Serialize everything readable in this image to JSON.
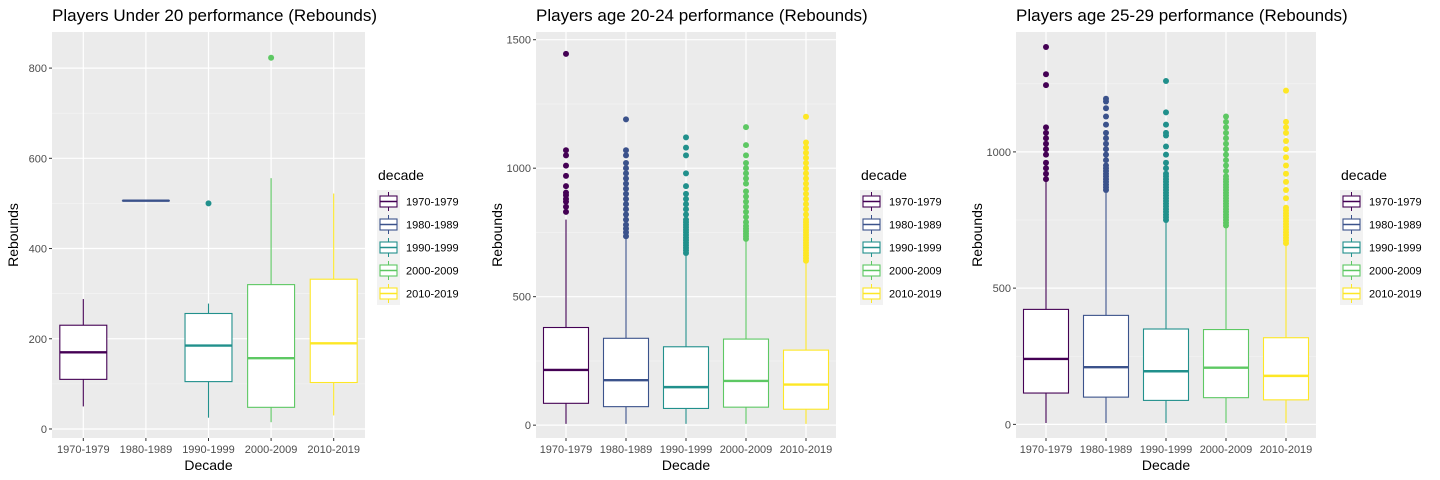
{
  "decade_colors": {
    "1970-1979": "#440154",
    "1980-1989": "#3b528b",
    "1990-1999": "#21908c",
    "2000-2009": "#5dc863",
    "2010-2019": "#fde725"
  },
  "chart_data": [
    {
      "type": "boxplot",
      "title": "Players Under 20 performance (Rebounds)",
      "xlabel": "Decade",
      "ylabel": "Rebounds",
      "ylim": [
        -20,
        880
      ],
      "yticks": [
        0,
        200,
        400,
        600,
        800
      ],
      "yticks_labels": [
        "0",
        "200",
        "400",
        "600",
        "800"
      ],
      "categories": [
        "1970-1979",
        "1980-1989",
        "1990-1999",
        "2000-2009",
        "2010-2019"
      ],
      "legend": {
        "title": "decade",
        "position": "right",
        "entries": [
          "1970-1979",
          "1980-1989",
          "1990-1999",
          "2000-2009",
          "2010-2019"
        ]
      },
      "boxes": [
        {
          "category": "1970-1979",
          "min": 50,
          "q1": 110,
          "median": 170,
          "q3": 230,
          "max": 288,
          "outliers": []
        },
        {
          "category": "1980-1989",
          "min": 506,
          "q1": 506,
          "median": 506,
          "q3": 506,
          "max": 506,
          "outliers": []
        },
        {
          "category": "1990-1999",
          "min": 25,
          "q1": 105,
          "median": 185,
          "q3": 256,
          "max": 278,
          "outliers": [
            500
          ]
        },
        {
          "category": "2000-2009",
          "min": 15,
          "q1": 48,
          "median": 157,
          "q3": 320,
          "max": 556,
          "outliers": [
            823
          ]
        },
        {
          "category": "2010-2019",
          "min": 30,
          "q1": 103,
          "median": 190,
          "q3": 332,
          "max": 522,
          "outliers": []
        }
      ]
    },
    {
      "type": "boxplot",
      "title": "Players age 20-24 performance (Rebounds)",
      "xlabel": "Decade",
      "ylabel": "Rebounds",
      "ylim": [
        -50,
        1530
      ],
      "yticks": [
        0,
        500,
        1000,
        1500
      ],
      "yticks_labels": [
        "0",
        "500",
        "1000",
        "1500"
      ],
      "categories": [
        "1970-1979",
        "1980-1989",
        "1990-1999",
        "2000-2009",
        "2010-2019"
      ],
      "legend": {
        "title": "decade",
        "position": "right",
        "entries": [
          "1970-1979",
          "1980-1989",
          "1990-1999",
          "2000-2009",
          "2010-2019"
        ]
      },
      "boxes": [
        {
          "category": "1970-1979",
          "min": 5,
          "q1": 85,
          "median": 215,
          "q3": 380,
          "max": 800,
          "outliers": [
            830,
            850,
            870,
            880,
            895,
            905,
            930,
            970,
            1010,
            1050,
            1070,
            1445
          ]
        },
        {
          "category": "1980-1989",
          "min": 5,
          "q1": 72,
          "median": 175,
          "q3": 338,
          "max": 725,
          "outliers": [
            735,
            750,
            765,
            780,
            800,
            820,
            840,
            860,
            880,
            900,
            920,
            940,
            960,
            980,
            1000,
            1020,
            1050,
            1070,
            1190
          ]
        },
        {
          "category": "1990-1999",
          "min": 5,
          "q1": 65,
          "median": 148,
          "q3": 305,
          "max": 665,
          "outliers": [
            670,
            680,
            690,
            700,
            710,
            720,
            730,
            740,
            750,
            760,
            770,
            780,
            790,
            800,
            820,
            840,
            860,
            880,
            900,
            930,
            980,
            1050,
            1080,
            1120
          ]
        },
        {
          "category": "2000-2009",
          "min": 5,
          "q1": 70,
          "median": 172,
          "q3": 335,
          "max": 720,
          "outliers": [
            725,
            735,
            745,
            755,
            765,
            775,
            790,
            810,
            830,
            850,
            870,
            890,
            910,
            940,
            960,
            980,
            1000,
            1020,
            1050,
            1090,
            1160
          ]
        },
        {
          "category": "2010-2019",
          "min": 5,
          "q1": 62,
          "median": 158,
          "q3": 292,
          "max": 635,
          "outliers": [
            640,
            650,
            660,
            670,
            680,
            690,
            700,
            710,
            720,
            730,
            740,
            750,
            760,
            770,
            780,
            790,
            800,
            820,
            840,
            860,
            880,
            900,
            920,
            940,
            960,
            980,
            1000,
            1020,
            1040,
            1060,
            1080,
            1100,
            1200
          ]
        }
      ]
    },
    {
      "type": "boxplot",
      "title": "Players age 25-29 performance (Rebounds)",
      "xlabel": "Decade",
      "ylabel": "Rebounds",
      "ylim": [
        -50,
        1440
      ],
      "yticks": [
        0,
        500,
        1000
      ],
      "yticks_labels": [
        "0",
        "500",
        "1000"
      ],
      "categories": [
        "1970-1979",
        "1980-1989",
        "1990-1999",
        "2000-2009",
        "2010-2019"
      ],
      "legend": {
        "title": "decade",
        "position": "right",
        "entries": [
          "1970-1979",
          "1980-1989",
          "1990-1999",
          "2000-2009",
          "2010-2019"
        ]
      },
      "boxes": [
        {
          "category": "1970-1979",
          "min": 5,
          "q1": 115,
          "median": 240,
          "q3": 422,
          "max": 890,
          "outliers": [
            900,
            920,
            940,
            960,
            990,
            1010,
            1030,
            1050,
            1070,
            1090,
            1245,
            1285,
            1385
          ]
        },
        {
          "category": "1980-1989",
          "min": 5,
          "q1": 100,
          "median": 210,
          "q3": 400,
          "max": 850,
          "outliers": [
            860,
            870,
            880,
            890,
            900,
            910,
            920,
            930,
            940,
            950,
            970,
            990,
            1010,
            1030,
            1050,
            1070,
            1100,
            1130,
            1160,
            1185,
            1195
          ]
        },
        {
          "category": "1990-1999",
          "min": 5,
          "q1": 88,
          "median": 195,
          "q3": 350,
          "max": 745,
          "outliers": [
            750,
            760,
            770,
            780,
            790,
            800,
            810,
            820,
            830,
            840,
            850,
            860,
            870,
            880,
            890,
            900,
            910,
            920,
            940,
            960,
            990,
            1020,
            1060,
            1070,
            1100,
            1145,
            1260
          ]
        },
        {
          "category": "2000-2009",
          "min": 5,
          "q1": 98,
          "median": 208,
          "q3": 348,
          "max": 720,
          "outliers": [
            730,
            740,
            750,
            760,
            770,
            780,
            790,
            800,
            810,
            820,
            830,
            840,
            850,
            860,
            870,
            880,
            890,
            900,
            910,
            930,
            950,
            970,
            990,
            1010,
            1030,
            1050,
            1070,
            1090,
            1110,
            1130
          ]
        },
        {
          "category": "2010-2019",
          "min": 5,
          "q1": 90,
          "median": 178,
          "q3": 318,
          "max": 655,
          "outliers": [
            665,
            675,
            685,
            695,
            705,
            715,
            725,
            735,
            745,
            755,
            765,
            775,
            785,
            795,
            830,
            860,
            890,
            920,
            950,
            980,
            1010,
            1040,
            1070,
            1090,
            1110,
            1225
          ]
        }
      ]
    }
  ]
}
